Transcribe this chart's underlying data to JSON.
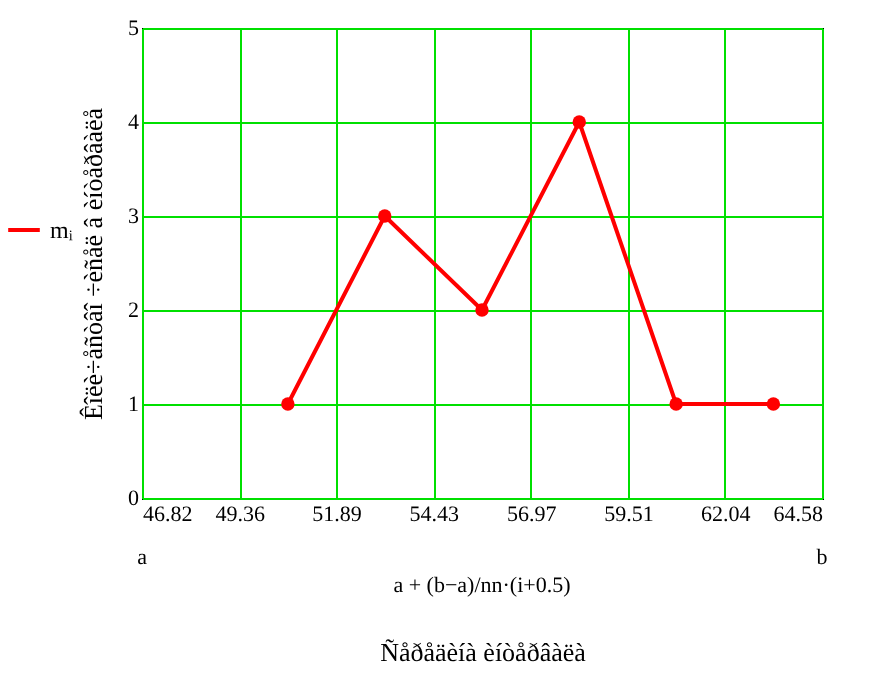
{
  "chart_data": {
    "type": "line",
    "xlabel": "Ñåðåäèíà èíòåðâàëà",
    "ylabel": "Êîëè÷åñòâî ÷èñåë â èíòåðâàëå",
    "x": [
      50.63,
      53.16,
      55.7,
      58.24,
      60.77,
      63.31
    ],
    "series": [
      {
        "name": "mᵢ",
        "color": "#ff0000",
        "values": [
          1,
          3,
          2,
          4,
          1,
          1
        ]
      }
    ],
    "xlim": [
      46.82,
      64.58
    ],
    "xticks": [
      46.82,
      49.36,
      51.89,
      54.43,
      56.97,
      59.51,
      62.04,
      64.58
    ],
    "ylim": [
      0,
      5
    ],
    "yticks": [
      0,
      1,
      2,
      3,
      4,
      5
    ],
    "grid": true,
    "legend": "left",
    "marker": "circle",
    "line_style": "solid",
    "annotations": [
      "a",
      "a + (b−a)/nn·(i+0.5)",
      "b"
    ]
  }
}
